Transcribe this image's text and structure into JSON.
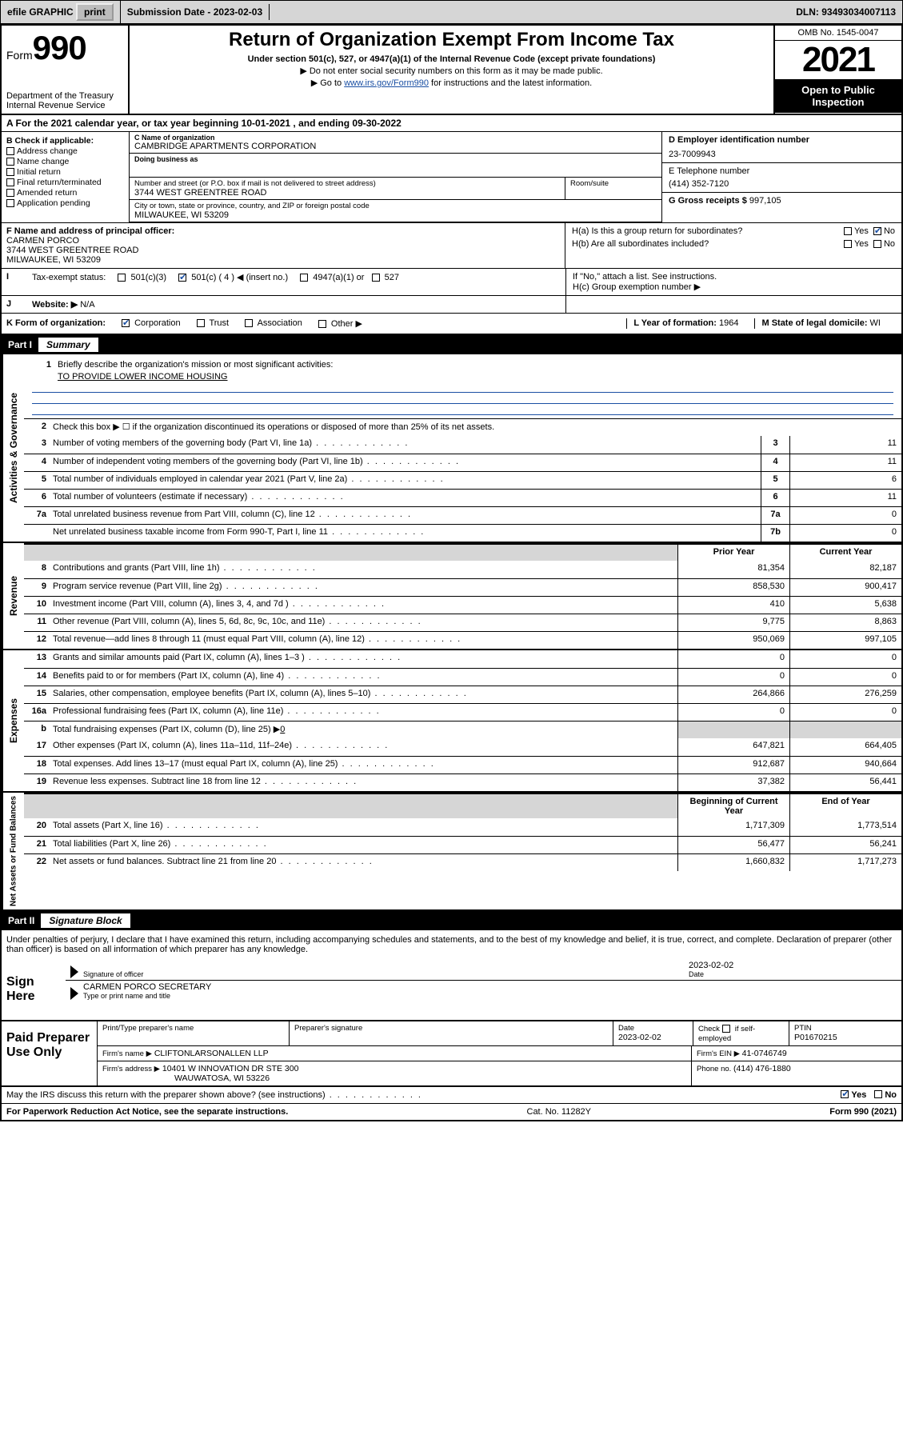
{
  "topbar": {
    "efile": "efile GRAPHIC",
    "print": "print",
    "sub_label": "Submission Date - ",
    "sub_date": "2023-02-03",
    "dln_label": "DLN: ",
    "dln": "93493034007113"
  },
  "header": {
    "form_word": "Form",
    "form_no": "990",
    "dept": "Department of the Treasury",
    "irs": "Internal Revenue Service",
    "title": "Return of Organization Exempt From Income Tax",
    "sub1": "Under section 501(c), 527, or 4947(a)(1) of the Internal Revenue Code (except private foundations)",
    "sub2": "Do not enter social security numbers on this form as it may be made public.",
    "sub3_a": "Go to ",
    "sub3_link": "www.irs.gov/Form990",
    "sub3_b": " for instructions and the latest information.",
    "omb": "OMB No. 1545-0047",
    "year": "2021",
    "open1": "Open to Public",
    "open2": "Inspection"
  },
  "rowA": {
    "text_a": "A For the 2021 calendar year, or tax year beginning ",
    "begin": "10-01-2021",
    "text_b": "  , and ending ",
    "end": "09-30-2022"
  },
  "boxB": {
    "label": "B Check if applicable:",
    "opts": [
      "Address change",
      "Name change",
      "Initial return",
      "Final return/terminated",
      "Amended return",
      "Application pending"
    ]
  },
  "boxC": {
    "name_label": "C Name of organization",
    "name": "CAMBRIDGE APARTMENTS CORPORATION",
    "dba_label": "Doing business as",
    "dba": "",
    "street_label": "Number and street (or P.O. box if mail is not delivered to street address)",
    "street": "3744 WEST GREENTREE ROAD",
    "suite_label": "Room/suite",
    "suite": "",
    "city_label": "City or town, state or province, country, and ZIP or foreign postal code",
    "city": "MILWAUKEE, WI  53209"
  },
  "boxD": {
    "label": "D Employer identification number",
    "val": "23-7009943"
  },
  "boxE": {
    "label": "E Telephone number",
    "val": "(414) 352-7120"
  },
  "boxG": {
    "label": "G Gross receipts $ ",
    "val": "997,105"
  },
  "boxF": {
    "label": "F Name and address of principal officer:",
    "name": "CARMEN PORCO",
    "street": "3744 WEST GREENTREE ROAD",
    "city": "MILWAUKEE, WI  53209"
  },
  "boxH": {
    "a": "H(a)  Is this a group return for subordinates?",
    "a_yes": "Yes",
    "a_no": "No",
    "b": "H(b)  Are all subordinates included?",
    "b_yes": "Yes",
    "b_no": "No",
    "b_note": "If \"No,\" attach a list. See instructions.",
    "c": "H(c)  Group exemption number ▶"
  },
  "rowI": {
    "label": "Tax-exempt status:",
    "o1": "501(c)(3)",
    "o2": "501(c) ( 4 ) ◀ (insert no.)",
    "o3": "4947(a)(1) or",
    "o4": "527"
  },
  "rowJ": {
    "label": "Website: ▶",
    "val": "N/A"
  },
  "rowK": {
    "label": "K Form of organization:",
    "o1": "Corporation",
    "o2": "Trust",
    "o3": "Association",
    "o4": "Other ▶",
    "l_label": "L Year of formation: ",
    "l_val": "1964",
    "m_label": "M State of legal domicile: ",
    "m_val": "WI"
  },
  "part1": {
    "num": "Part I",
    "title": "Summary"
  },
  "sec_ag": {
    "tab": "Activities & Governance",
    "l1": "Briefly describe the organization's mission or most significant activities:",
    "l1_val": "TO PROVIDE LOWER INCOME HOUSING",
    "l2": "Check this box ▶ ☐  if the organization discontinued its operations or disposed of more than 25% of its net assets.",
    "rows": [
      {
        "n": "3",
        "t": "Number of voting members of the governing body (Part VI, line 1a)",
        "b": "3",
        "v": "11"
      },
      {
        "n": "4",
        "t": "Number of independent voting members of the governing body (Part VI, line 1b)",
        "b": "4",
        "v": "11"
      },
      {
        "n": "5",
        "t": "Total number of individuals employed in calendar year 2021 (Part V, line 2a)",
        "b": "5",
        "v": "6"
      },
      {
        "n": "6",
        "t": "Total number of volunteers (estimate if necessary)",
        "b": "6",
        "v": "11"
      },
      {
        "n": "7a",
        "t": "Total unrelated business revenue from Part VIII, column (C), line 12",
        "b": "7a",
        "v": "0"
      },
      {
        "n": "",
        "t": "Net unrelated business taxable income from Form 990-T, Part I, line 11",
        "b": "7b",
        "v": "0"
      }
    ]
  },
  "twocol": {
    "prior": "Prior Year",
    "current": "Current Year",
    "begin": "Beginning of Current Year",
    "end": "End of Year"
  },
  "sec_rev": {
    "tab": "Revenue",
    "rows": [
      {
        "n": "8",
        "t": "Contributions and grants (Part VIII, line 1h)",
        "p": "81,354",
        "c": "82,187"
      },
      {
        "n": "9",
        "t": "Program service revenue (Part VIII, line 2g)",
        "p": "858,530",
        "c": "900,417"
      },
      {
        "n": "10",
        "t": "Investment income (Part VIII, column (A), lines 3, 4, and 7d )",
        "p": "410",
        "c": "5,638"
      },
      {
        "n": "11",
        "t": "Other revenue (Part VIII, column (A), lines 5, 6d, 8c, 9c, 10c, and 11e)",
        "p": "9,775",
        "c": "8,863"
      },
      {
        "n": "12",
        "t": "Total revenue—add lines 8 through 11 (must equal Part VIII, column (A), line 12)",
        "p": "950,069",
        "c": "997,105"
      }
    ]
  },
  "sec_exp": {
    "tab": "Expenses",
    "rows": [
      {
        "n": "13",
        "t": "Grants and similar amounts paid (Part IX, column (A), lines 1–3 )",
        "p": "0",
        "c": "0"
      },
      {
        "n": "14",
        "t": "Benefits paid to or for members (Part IX, column (A), line 4)",
        "p": "0",
        "c": "0"
      },
      {
        "n": "15",
        "t": "Salaries, other compensation, employee benefits (Part IX, column (A), lines 5–10)",
        "p": "264,866",
        "c": "276,259"
      },
      {
        "n": "16a",
        "t": "Professional fundraising fees (Part IX, column (A), line 11e)",
        "p": "0",
        "c": "0"
      }
    ],
    "row_b_n": "b",
    "row_b_t": "Total fundraising expenses (Part IX, column (D), line 25) ▶",
    "row_b_v": "0",
    "rows2": [
      {
        "n": "17",
        "t": "Other expenses (Part IX, column (A), lines 11a–11d, 11f–24e)",
        "p": "647,821",
        "c": "664,405"
      },
      {
        "n": "18",
        "t": "Total expenses. Add lines 13–17 (must equal Part IX, column (A), line 25)",
        "p": "912,687",
        "c": "940,664"
      },
      {
        "n": "19",
        "t": "Revenue less expenses. Subtract line 18 from line 12",
        "p": "37,382",
        "c": "56,441"
      }
    ]
  },
  "sec_na": {
    "tab": "Net Assets or Fund Balances",
    "rows": [
      {
        "n": "20",
        "t": "Total assets (Part X, line 16)",
        "p": "1,717,309",
        "c": "1,773,514"
      },
      {
        "n": "21",
        "t": "Total liabilities (Part X, line 26)",
        "p": "56,477",
        "c": "56,241"
      },
      {
        "n": "22",
        "t": "Net assets or fund balances. Subtract line 21 from line 20",
        "p": "1,660,832",
        "c": "1,717,273"
      }
    ]
  },
  "part2": {
    "num": "Part II",
    "title": "Signature Block"
  },
  "sig": {
    "pen": "Under penalties of perjury, I declare that I have examined this return, including accompanying schedules and statements, and to the best of my knowledge and belief, it is true, correct, and complete. Declaration of preparer (other than officer) is based on all information of which preparer has any knowledge.",
    "here": "Sign Here",
    "officer_lab": "Signature of officer",
    "date_lab": "Date",
    "date": "2023-02-02",
    "name": "CARMEN PORCO  SECRETARY",
    "name_lab": "Type or print name and title"
  },
  "prep": {
    "title": "Paid Preparer Use Only",
    "h1": "Print/Type preparer's name",
    "h2": "Preparer's signature",
    "h3": "Date",
    "h3v": "2023-02-02",
    "h4a": "Check",
    "h4b": "if self-employed",
    "h5": "PTIN",
    "h5v": "P01670215",
    "firm_lab": "Firm's name   ▶",
    "firm": "CLIFTONLARSONALLEN LLP",
    "ein_lab": "Firm's EIN ▶ ",
    "ein": "41-0746749",
    "addr_lab": "Firm's address ▶",
    "addr1": "10401 W INNOVATION DR STE 300",
    "addr2": "WAUWATOSA, WI  53226",
    "phone_lab": "Phone no. ",
    "phone": "(414) 476-1880",
    "discuss": "May the IRS discuss this return with the preparer shown above? (see instructions)",
    "yes": "Yes",
    "no": "No"
  },
  "footer": {
    "left": "For Paperwork Reduction Act Notice, see the separate instructions.",
    "mid": "Cat. No. 11282Y",
    "right": "Form 990 (2021)"
  }
}
